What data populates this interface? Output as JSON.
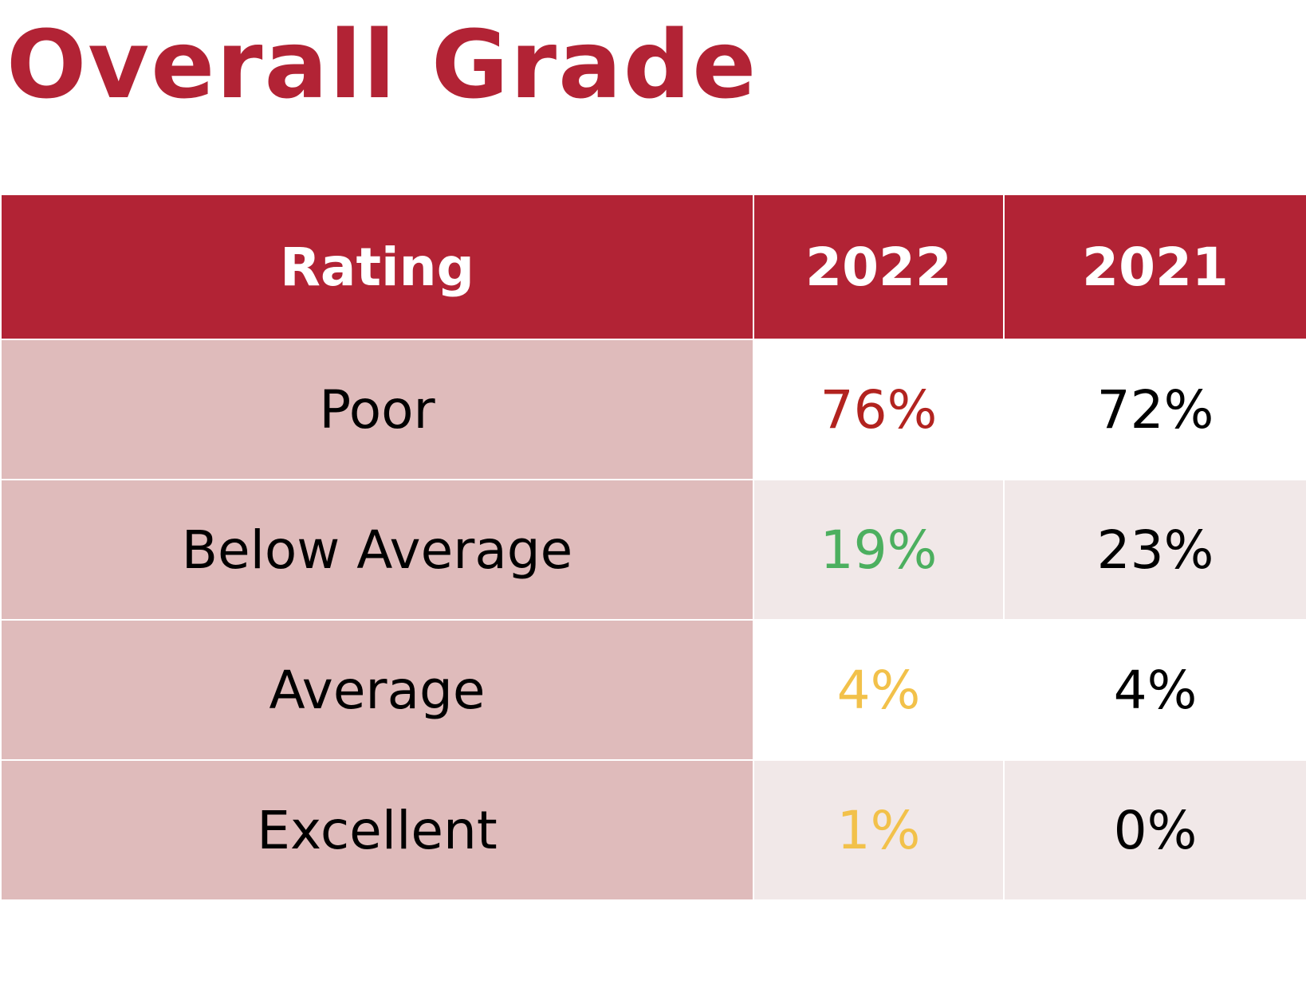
{
  "title": "Overall Grade",
  "table": {
    "headers": [
      "Rating",
      "2022",
      "2021"
    ],
    "rows": [
      {
        "rating": "Poor",
        "y2022": "76%",
        "y2021": "72%",
        "color_2022": "#b2231f"
      },
      {
        "rating": "Below Average",
        "y2022": "19%",
        "y2021": "23%",
        "color_2022": "#4caf5f"
      },
      {
        "rating": "Average",
        "y2022": "4%",
        "y2021": "4%",
        "color_2022": "#f2c14a"
      },
      {
        "rating": "Excellent",
        "y2022": "1%",
        "y2021": "0%",
        "color_2022": "#f2c14a"
      }
    ]
  },
  "colors": {
    "brand": "#b22335",
    "rating_column": "#dfbbbb",
    "row_alt": "#f1e8e8",
    "row_plain": "#ffffff"
  }
}
